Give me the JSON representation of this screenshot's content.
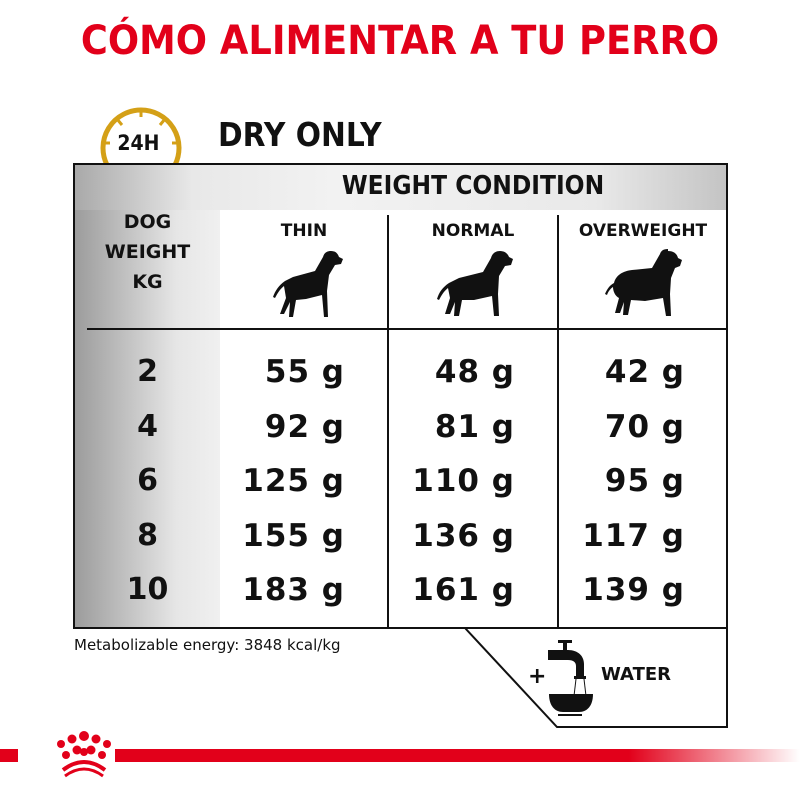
{
  "title": "CÓMO ALIMENTAR A TU PERRO",
  "clock_label": "24H",
  "subtitle": "DRY ONLY",
  "table": {
    "group_header": "WEIGHT CONDITION",
    "row_header": [
      "DOG",
      "WEIGHT",
      "KG"
    ],
    "columns": [
      "THIN",
      "NORMAL",
      "OVERWEIGHT"
    ],
    "rows": [
      {
        "kg": "2",
        "values": [
          "55 g",
          "48 g",
          "42 g"
        ]
      },
      {
        "kg": "4",
        "values": [
          "92 g",
          "81 g",
          "70 g"
        ]
      },
      {
        "kg": "6",
        "values": [
          "125 g",
          "110 g",
          "95 g"
        ]
      },
      {
        "kg": "8",
        "values": [
          "155 g",
          "136 g",
          "117 g"
        ]
      },
      {
        "kg": "10",
        "values": [
          "183 g",
          "161 g",
          "139 g"
        ]
      }
    ]
  },
  "energy": "Metabolizable energy: 3848 kcal/kg",
  "water": {
    "plus": "+",
    "label": "WATER"
  },
  "colors": {
    "brand_red": "#e2001a",
    "clock_gold": "#d4a017"
  },
  "logo_text": "Royal Canin crown"
}
